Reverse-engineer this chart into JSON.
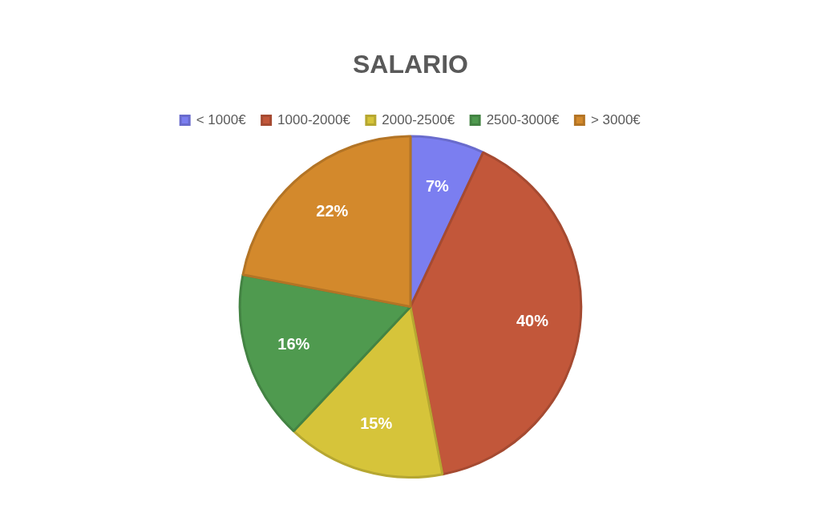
{
  "chart_data": {
    "type": "pie",
    "title": "SALARIO",
    "categories": [
      "< 1000€",
      "1000-2000€",
      "2000-2500€",
      "2500-3000€",
      "> 3000€"
    ],
    "values": [
      7,
      40,
      15,
      16,
      22
    ],
    "colors": [
      "#7b7ef0",
      "#c2573a",
      "#d6c43a",
      "#4f9a4f",
      "#d3892c"
    ],
    "value_labels": [
      "7%",
      "40%",
      "15%",
      "16%",
      "22%"
    ],
    "legend": "top"
  }
}
